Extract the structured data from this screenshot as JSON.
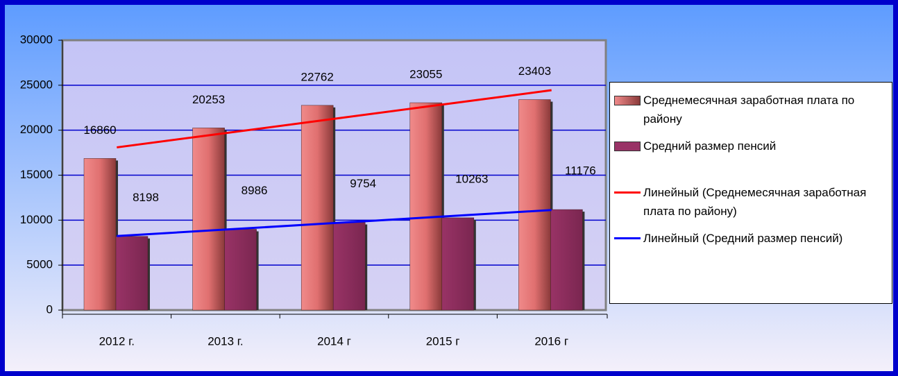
{
  "chart_data": {
    "type": "bar",
    "categories": [
      "2012 г.",
      "2013 г.",
      "2014 г",
      "2015 г",
      "2016 г"
    ],
    "series": [
      {
        "name": "Среднемесячная заработная плата по району",
        "color": "#e07070",
        "values": [
          16860,
          20253,
          22762,
          23055,
          23403
        ]
      },
      {
        "name": "Средний размер пенсий",
        "color": "#993366",
        "values": [
          8198,
          8986,
          9754,
          10263,
          11176
        ]
      }
    ],
    "trendlines": [
      {
        "name": "Линейный (Среднемесячная заработная плата по району)",
        "color": "#ff0000",
        "values": [
          18089,
          19678,
          21267,
          22855,
          24444
        ]
      },
      {
        "name": "Линейный (Средний размер пенсий)",
        "color": "#0000ff",
        "values": [
          8229,
          8952,
          9675,
          10399,
          11122
        ]
      }
    ],
    "ylim": [
      0,
      30000
    ],
    "yticks": [
      0,
      5000,
      10000,
      15000,
      20000,
      25000,
      30000
    ],
    "grid": true,
    "legend": "right"
  }
}
